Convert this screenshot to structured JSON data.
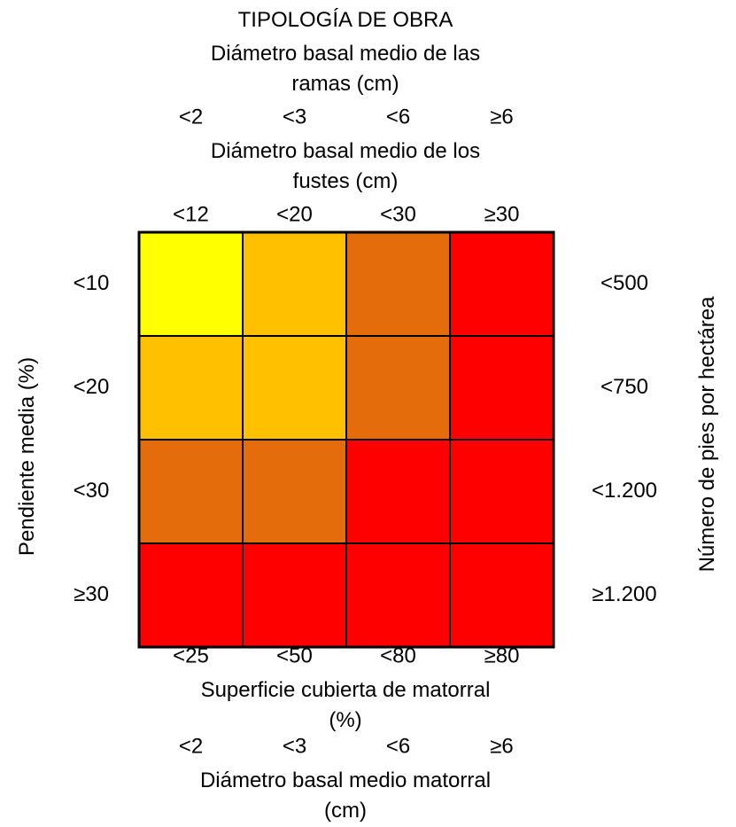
{
  "chart_data": {
    "type": "heatmap",
    "title": "TIPOLOGÍA DE OBRA",
    "top_header_1": {
      "title_lines": [
        "Diámetro basal medio de las",
        "ramas (cm)"
      ],
      "ticks": [
        "<2",
        "<3",
        "<6",
        "≥6"
      ]
    },
    "top_header_2": {
      "title_lines": [
        "Diámetro basal medio de los",
        "fustes (cm)"
      ],
      "ticks": [
        "<12",
        "<20",
        "<30",
        "≥30"
      ]
    },
    "bottom_header_1": {
      "ticks": [
        "<25",
        "<50",
        "<80",
        "≥80"
      ],
      "title_lines": [
        "Superficie cubierta de matorral",
        "(%)"
      ]
    },
    "bottom_header_2": {
      "ticks": [
        "<2",
        "<3",
        "<6",
        "≥6"
      ],
      "title_lines": [
        "Diámetro basal medio matorral",
        "(cm)"
      ]
    },
    "left_axis": {
      "label": "Pendiente media (%)",
      "ticks": [
        "<10",
        "<20",
        "<30",
        "≥30"
      ]
    },
    "right_axis": {
      "label": "Número de pies por hectárea",
      "ticks": [
        "<500",
        "<750",
        "<1.200",
        "≥1.200"
      ]
    },
    "levels": [
      [
        1,
        2,
        3,
        4
      ],
      [
        2,
        2,
        3,
        4
      ],
      [
        3,
        3,
        4,
        4
      ],
      [
        4,
        4,
        4,
        4
      ]
    ],
    "colors": {
      "1": "#ffff00",
      "2": "#ffc000",
      "3": "#e46c0a",
      "4": "#ff0000"
    },
    "grid_line_color": "#000000"
  }
}
